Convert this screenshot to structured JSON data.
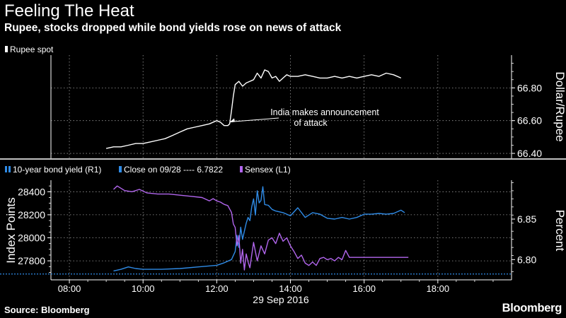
{
  "title": "Feeling The Heat",
  "subtitle": "Rupee, stocks dropped while bond yields rose on news of attack",
  "source": "Source: Bloomberg",
  "brand": "Bloomberg",
  "colors": {
    "background": "#000000",
    "rupee": "#ffffff",
    "bond": "#2f8be6",
    "close": "#2f8be6",
    "sensex": "#b266ee",
    "grid": "#9a9a9a",
    "axis": "#ffffff"
  },
  "chart_data": [
    {
      "type": "line",
      "legend": [
        "Rupee spot"
      ],
      "ylabel_right": "Dollar/Rupee",
      "yticks_right": [
        "66.80",
        "66.60",
        "66.40"
      ],
      "ylim_right": [
        66.37,
        67.0
      ],
      "grid": true,
      "annotation": {
        "text": [
          "India makes announcement",
          "of attack"
        ],
        "x": 12.3,
        "y": 66.58
      },
      "series": [
        {
          "name": "Rupee spot",
          "axis": "right",
          "x": [
            9.0,
            9.2,
            9.4,
            9.6,
            9.8,
            10.0,
            10.2,
            10.4,
            10.6,
            10.8,
            11.0,
            11.2,
            11.4,
            11.6,
            11.8,
            12.0,
            12.1,
            12.2,
            12.3,
            12.35,
            12.4,
            12.45,
            12.5,
            12.6,
            12.7,
            12.8,
            12.9,
            13.0,
            13.1,
            13.2,
            13.3,
            13.4,
            13.5,
            13.6,
            13.7,
            13.8,
            13.9,
            14.0,
            14.2,
            14.4,
            14.6,
            14.8,
            15.0,
            15.2,
            15.4,
            15.6,
            15.8,
            16.0,
            16.2,
            16.4,
            16.6,
            16.8,
            17.0
          ],
          "values": [
            66.43,
            66.44,
            66.44,
            66.45,
            66.46,
            66.46,
            66.47,
            66.48,
            66.49,
            66.51,
            66.53,
            66.55,
            66.56,
            66.57,
            66.58,
            66.6,
            66.59,
            66.57,
            66.57,
            66.58,
            66.66,
            66.75,
            66.82,
            66.84,
            66.81,
            66.83,
            66.84,
            66.85,
            66.89,
            66.86,
            66.91,
            66.9,
            66.86,
            66.87,
            66.84,
            66.86,
            66.88,
            66.87,
            66.87,
            66.88,
            66.87,
            66.86,
            66.86,
            66.87,
            66.86,
            66.87,
            66.86,
            66.87,
            66.88,
            66.87,
            66.89,
            66.88,
            66.86
          ]
        }
      ]
    },
    {
      "type": "line",
      "legend": [
        "10-year bond yield (R1)",
        "Close on 09/28 ---- 6.7822",
        "Sensex (L1)"
      ],
      "ylabel_left": "Index Points",
      "ylabel_right": "Percent",
      "yticks_left": [
        "28400",
        "28200",
        "28000",
        "27800"
      ],
      "yticks_right": [
        "6.85",
        "6.80"
      ],
      "ylim_left": [
        27635,
        28500
      ],
      "ylim_right": [
        6.775,
        6.898
      ],
      "xticks": [
        "08:00",
        "10:00",
        "12:00",
        "14:00",
        "16:00",
        "18:00"
      ],
      "xlabel": "29 Sep 2016",
      "xlim": [
        7.5,
        20.0
      ],
      "grid": true,
      "reference_line": {
        "name": "Close on 09/28",
        "value": 6.7822,
        "axis": "right"
      },
      "series": [
        {
          "name": "Sensex (L1)",
          "axis": "left",
          "x": [
            9.2,
            9.3,
            9.5,
            9.7,
            9.9,
            10.1,
            10.4,
            10.7,
            11.0,
            11.3,
            11.6,
            11.8,
            11.9,
            12.0,
            12.1,
            12.2,
            12.3,
            12.4,
            12.45,
            12.5,
            12.55,
            12.6,
            12.65,
            12.7,
            12.75,
            12.8,
            12.85,
            12.9,
            13.0,
            13.1,
            13.2,
            13.3,
            13.4,
            13.5,
            13.6,
            13.7,
            13.8,
            13.9,
            14.0,
            14.1,
            14.2,
            14.3,
            14.4,
            14.5,
            14.6,
            14.7,
            14.8,
            14.9,
            15.0,
            15.1,
            15.2,
            15.3,
            15.4,
            15.5,
            15.6,
            15.7,
            16.0,
            16.5,
            17.0,
            17.2
          ],
          "values": [
            28420,
            28450,
            28410,
            28400,
            28420,
            28390,
            28380,
            28380,
            28370,
            28360,
            28350,
            28320,
            28340,
            28320,
            28310,
            28290,
            28280,
            28220,
            28120,
            28090,
            27930,
            28020,
            27780,
            27900,
            27720,
            27860,
            27790,
            27740,
            27960,
            27800,
            27930,
            27860,
            27980,
            28000,
            27950,
            28040,
            27970,
            28000,
            27930,
            27880,
            27820,
            27850,
            27780,
            27760,
            27790,
            27760,
            27820,
            27830,
            27810,
            27820,
            27800,
            27830,
            27810,
            27890,
            27830,
            27830,
            27830,
            27830,
            27830,
            27830
          ]
        },
        {
          "name": "10-year bond yield (R1)",
          "axis": "right",
          "x": [
            9.2,
            9.4,
            9.6,
            9.8,
            10.0,
            10.5,
            11.0,
            11.5,
            12.0,
            12.2,
            12.4,
            12.5,
            12.55,
            12.6,
            12.65,
            12.7,
            12.75,
            12.8,
            12.85,
            12.9,
            12.95,
            13.0,
            13.05,
            13.1,
            13.15,
            13.2,
            13.25,
            13.3,
            13.4,
            13.5,
            13.6,
            13.8,
            14.0,
            14.2,
            14.4,
            14.6,
            14.8,
            15.0,
            15.2,
            15.4,
            15.6,
            15.8,
            16.0,
            16.2,
            16.4,
            16.6,
            16.8,
            17.0,
            17.1
          ],
          "values": [
            6.786,
            6.788,
            6.791,
            6.789,
            6.788,
            6.788,
            6.789,
            6.791,
            6.793,
            6.796,
            6.8,
            6.81,
            6.83,
            6.815,
            6.84,
            6.825,
            6.835,
            6.845,
            6.852,
            6.848,
            6.865,
            6.875,
            6.855,
            6.885,
            6.87,
            6.873,
            6.89,
            6.868,
            6.867,
            6.862,
            6.86,
            6.858,
            6.854,
            6.864,
            6.852,
            6.858,
            6.856,
            6.851,
            6.85,
            6.852,
            6.85,
            6.852,
            6.856,
            6.856,
            6.857,
            6.856,
            6.857,
            6.861,
            6.858
          ]
        }
      ]
    }
  ]
}
